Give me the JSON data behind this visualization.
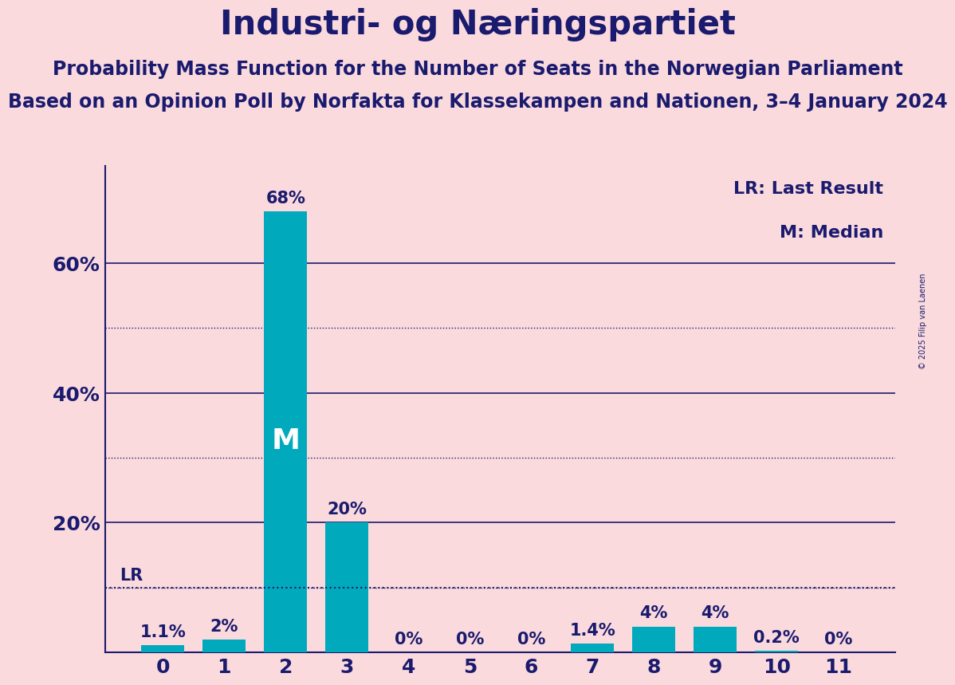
{
  "title": "Industri- og Næringspartiet",
  "subtitle1": "Probability Mass Function for the Number of Seats in the Norwegian Parliament",
  "subtitle2": "Based on an Opinion Poll by Norfakta for Klassekampen and Nationen, 3–4 January 2024",
  "copyright": "© 2025 Filip van Laenen",
  "categories": [
    0,
    1,
    2,
    3,
    4,
    5,
    6,
    7,
    8,
    9,
    10,
    11
  ],
  "values": [
    1.1,
    2.0,
    68.0,
    20.0,
    0.0,
    0.0,
    0.0,
    1.4,
    4.0,
    4.0,
    0.2,
    0.0
  ],
  "labels": [
    "1.1%",
    "2%",
    "68%",
    "20%",
    "0%",
    "0%",
    "0%",
    "1.4%",
    "4%",
    "4%",
    "0.2%",
    "0%"
  ],
  "bar_color": "#00AABC",
  "background_color": "#FADADD",
  "title_color": "#1a1a6e",
  "label_color": "#1a1a6e",
  "median_bar_idx": 2,
  "lr_value": 10.0,
  "ylim_max": 75,
  "solid_grid_lines": [
    20,
    40,
    60
  ],
  "dotted_grid_lines": [
    10,
    30,
    50
  ],
  "ytick_positions": [
    20,
    40,
    60
  ],
  "ytick_labels": [
    "20%",
    "40%",
    "60%"
  ],
  "title_fontsize": 30,
  "subtitle1_fontsize": 17,
  "subtitle2_fontsize": 17,
  "label_fontsize": 15,
  "tick_fontsize": 18,
  "legend_fontsize": 16,
  "m_fontsize": 26,
  "copyright_fontsize": 7
}
